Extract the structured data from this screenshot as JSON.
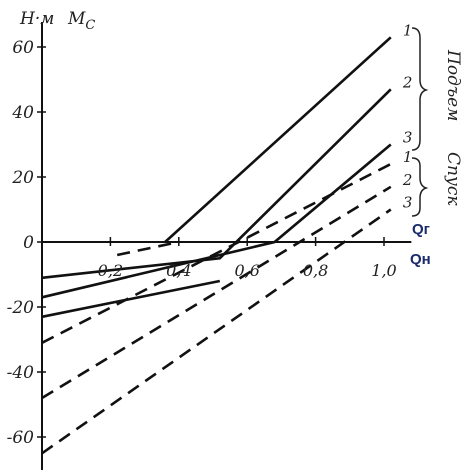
{
  "chart_data": {
    "type": "line",
    "ylabel_unit": "Н·м",
    "ylabel_symbol": "M",
    "ylabel_subscript": "C",
    "xlabel_top": "Qг",
    "xlabel_bottom": "Qн",
    "xlim": [
      0,
      1.1
    ],
    "ylim": [
      -70,
      70
    ],
    "x_ticks": [
      {
        "value": 0.2,
        "label": "0,2"
      },
      {
        "value": 0.4,
        "label": "0,4"
      },
      {
        "value": 0.6,
        "label": "0,6"
      },
      {
        "value": 0.8,
        "label": "0,8"
      },
      {
        "value": 1.0,
        "label": "1,0"
      }
    ],
    "y_ticks": [
      {
        "value": 60,
        "label": "60"
      },
      {
        "value": 40,
        "label": "40"
      },
      {
        "value": 20,
        "label": "20"
      },
      {
        "value": 0,
        "label": "0"
      },
      {
        "value": -20,
        "label": "-20"
      },
      {
        "value": -40,
        "label": "-40"
      },
      {
        "value": -60,
        "label": "-60"
      }
    ],
    "group_labels": {
      "lifting": "Подъем",
      "lowering": "Спуск"
    },
    "series": [
      {
        "label": "1",
        "group": "lifting",
        "style": "solid",
        "x": [
          0.36,
          1.02
        ],
        "y": [
          0,
          63
        ]
      },
      {
        "label": "2",
        "group": "lifting",
        "style": "solid",
        "x": [
          0.0,
          0.52,
          1.02
        ],
        "y": [
          -11,
          -5,
          47
        ]
      },
      {
        "label": "3",
        "group": "lifting",
        "style": "solid",
        "x": [
          0.0,
          0.68,
          1.02
        ],
        "y": [
          -17,
          0,
          30
        ]
      },
      {
        "label": "",
        "group": "lifting",
        "style": "solid",
        "x": [
          0.0,
          0.52
        ],
        "y": [
          -23,
          -12
        ]
      },
      {
        "label": "1",
        "group": "lowering",
        "style": "dashed",
        "x": [
          0.0,
          1.02
        ],
        "y": [
          -31,
          24
        ]
      },
      {
        "label": "2",
        "group": "lowering",
        "style": "dashed",
        "x": [
          0.0,
          1.02
        ],
        "y": [
          -48,
          17
        ]
      },
      {
        "label": "3",
        "group": "lowering",
        "style": "dashed",
        "x": [
          0.0,
          1.02
        ],
        "y": [
          -65,
          10
        ]
      },
      {
        "label": "",
        "group": "lowering",
        "style": "dashed",
        "x": [
          0.22,
          0.4
        ],
        "y": [
          -4,
          0
        ]
      }
    ],
    "colors": {
      "line": "#111111",
      "axis": "#111111",
      "q_label": "#1a2a6a"
    }
  }
}
